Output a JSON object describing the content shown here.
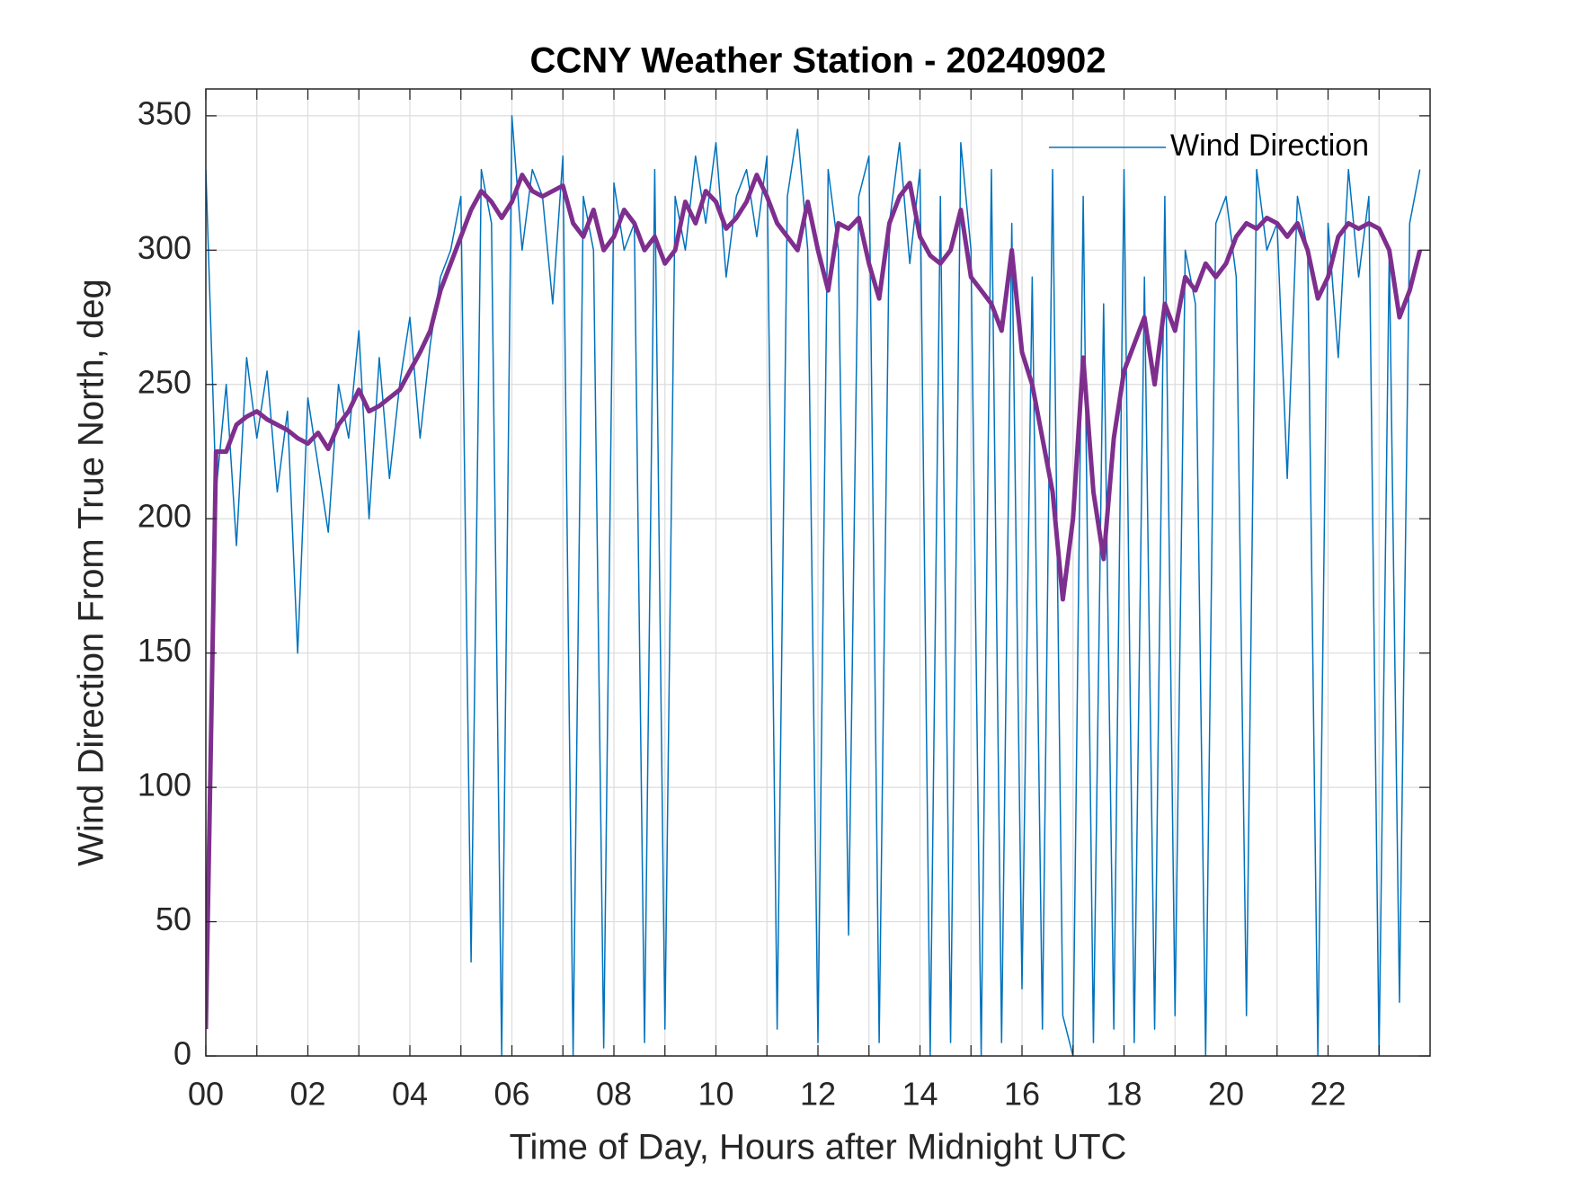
{
  "chart_data": {
    "type": "line",
    "title": "CCNY Weather Station - 20240902",
    "xlabel": "Time of Day, Hours after Midnight UTC",
    "ylabel": "Wind Direction From True North, deg",
    "x": [
      0,
      0.2,
      0.4,
      0.6,
      0.8,
      1,
      1.2,
      1.4,
      1.6,
      1.8,
      2,
      2.2,
      2.4,
      2.6,
      2.8,
      3,
      3.2,
      3.4,
      3.6,
      3.8,
      4,
      4.2,
      4.4,
      4.6,
      4.8,
      5,
      5.2,
      5.4,
      5.6,
      5.8,
      6,
      6.2,
      6.4,
      6.6,
      6.8,
      7,
      7.2,
      7.4,
      7.6,
      7.8,
      8,
      8.2,
      8.4,
      8.6,
      8.8,
      9,
      9.2,
      9.4,
      9.6,
      9.8,
      10,
      10.2,
      10.4,
      10.6,
      10.8,
      11,
      11.2,
      11.4,
      11.6,
      11.8,
      12,
      12.2,
      12.4,
      12.6,
      12.8,
      13,
      13.2,
      13.4,
      13.6,
      13.8,
      14,
      14.2,
      14.4,
      14.6,
      14.8,
      15,
      15.2,
      15.4,
      15.6,
      15.8,
      16,
      16.2,
      16.4,
      16.6,
      16.8,
      17,
      17.2,
      17.4,
      17.6,
      17.8,
      18,
      18.2,
      18.4,
      18.6,
      18.8,
      19,
      19.2,
      19.4,
      19.6,
      19.8,
      20,
      20.2,
      20.4,
      20.6,
      20.8,
      21,
      21.2,
      21.4,
      21.6,
      21.8,
      22,
      22.2,
      22.4,
      22.6,
      22.8,
      23,
      23.2,
      23.4,
      23.6,
      23.8
    ],
    "series": [
      {
        "name": "Wind Direction",
        "color": "#0072BD",
        "width": 1.5,
        "values": [
          330,
          210,
          250,
          190,
          260,
          230,
          255,
          210,
          240,
          150,
          245,
          220,
          195,
          250,
          230,
          270,
          200,
          260,
          215,
          250,
          275,
          230,
          265,
          290,
          300,
          320,
          35,
          330,
          310,
          0,
          350,
          300,
          330,
          320,
          280,
          335,
          0,
          320,
          300,
          3,
          325,
          300,
          310,
          5,
          330,
          10,
          320,
          300,
          335,
          310,
          340,
          290,
          320,
          330,
          305,
          335,
          10,
          320,
          345,
          300,
          5,
          330,
          300,
          45,
          320,
          335,
          5,
          310,
          340,
          295,
          330,
          0,
          320,
          5,
          340,
          300,
          0,
          330,
          5,
          310,
          25,
          290,
          10,
          330,
          15,
          0,
          320,
          5,
          280,
          10,
          330,
          5,
          290,
          10,
          320,
          15,
          300,
          280,
          0,
          310,
          320,
          290,
          15,
          330,
          300,
          310,
          215,
          320,
          300,
          0,
          310,
          260,
          330,
          290,
          320,
          0,
          300,
          20,
          310,
          330
        ]
      },
      {
        "color": "#7E2F8E",
        "width": 5,
        "values": [
          10,
          225,
          225,
          235,
          238,
          240,
          237,
          235,
          233,
          230,
          228,
          232,
          226,
          235,
          240,
          248,
          240,
          242,
          245,
          248,
          255,
          262,
          270,
          285,
          295,
          305,
          315,
          322,
          318,
          312,
          318,
          328,
          322,
          320,
          322,
          324,
          310,
          305,
          315,
          300,
          305,
          315,
          310,
          300,
          305,
          295,
          300,
          318,
          310,
          322,
          318,
          308,
          312,
          318,
          328,
          320,
          310,
          305,
          300,
          318,
          300,
          285,
          310,
          308,
          312,
          295,
          282,
          310,
          320,
          325,
          305,
          298,
          295,
          300,
          315,
          290,
          285,
          280,
          270,
          300,
          262,
          250,
          230,
          210,
          170,
          200,
          260,
          210,
          185,
          230,
          255,
          265,
          275,
          250,
          280,
          270,
          290,
          285,
          295,
          290,
          295,
          305,
          310,
          308,
          312,
          310,
          305,
          310,
          300,
          282,
          290,
          305,
          310,
          308,
          310,
          308,
          300,
          275,
          285,
          300
        ]
      }
    ],
    "xlim": [
      0,
      24
    ],
    "xticks": [
      {
        "value": 0,
        "label": "00"
      },
      {
        "value": 2,
        "label": "02"
      },
      {
        "value": 4,
        "label": "04"
      },
      {
        "value": 6,
        "label": "06"
      },
      {
        "value": 8,
        "label": "08"
      },
      10,
      12,
      14,
      16,
      18,
      20,
      22
    ],
    "xminorticks": [
      1,
      3,
      5,
      7,
      9,
      11,
      13,
      15,
      17,
      19,
      21,
      23
    ],
    "ylim": [
      0,
      360
    ],
    "yticks": [
      0,
      50,
      100,
      150,
      200,
      250,
      300,
      350
    ],
    "grid": true,
    "legend": "northeast"
  }
}
